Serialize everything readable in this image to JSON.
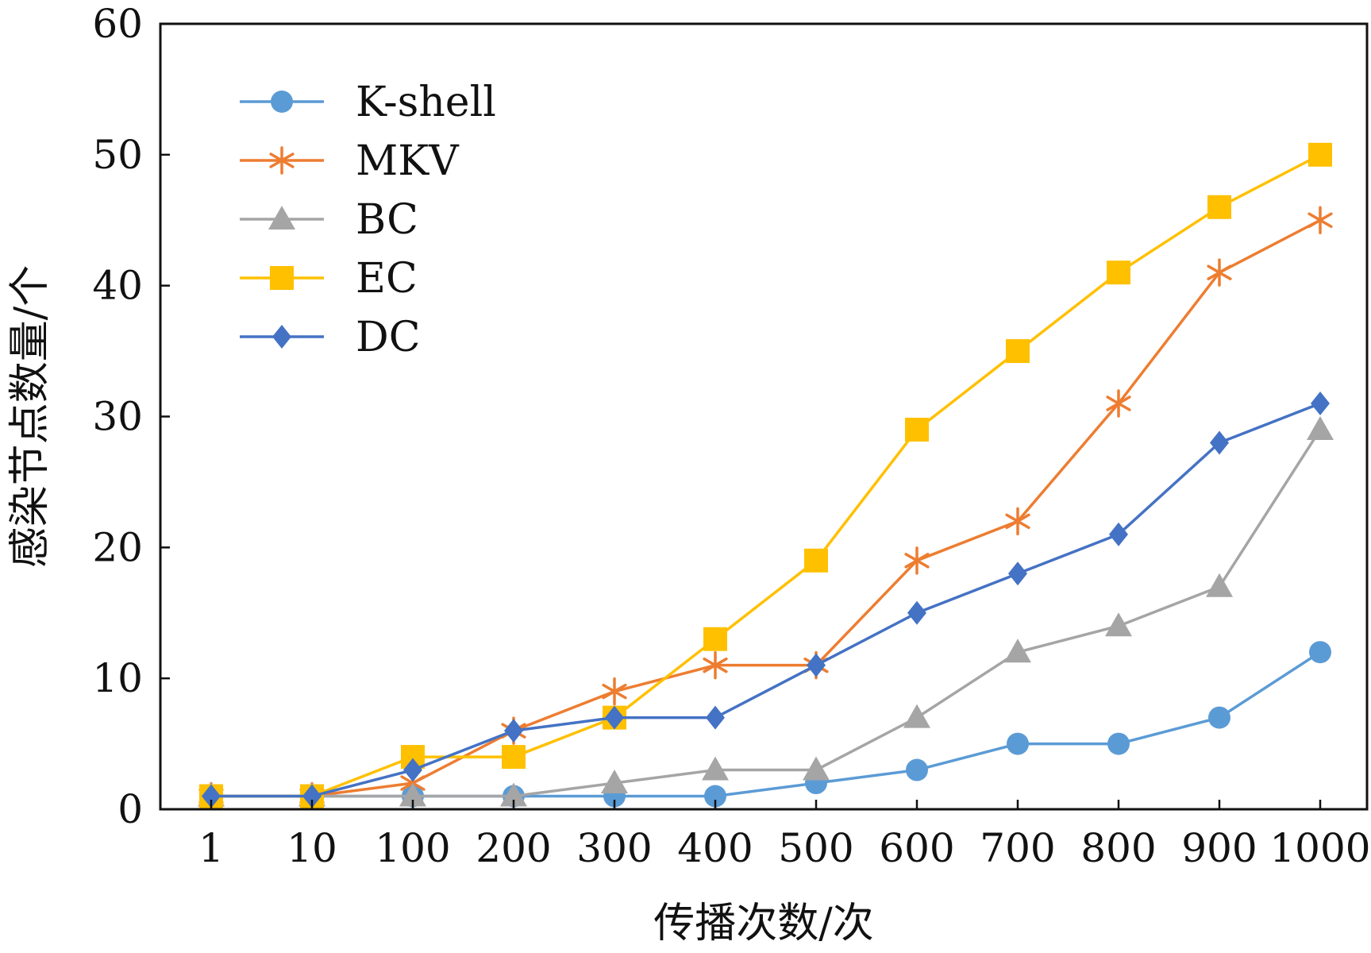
{
  "chart_data": {
    "type": "line",
    "xlabel": "传播次数/次",
    "ylabel": "感染节点数量/个",
    "categories": [
      "1",
      "10",
      "100",
      "200",
      "300",
      "400",
      "500",
      "600",
      "700",
      "800",
      "900",
      "1000"
    ],
    "yticks": [
      "0",
      "10",
      "20",
      "30",
      "40",
      "50",
      "60"
    ],
    "ylim": [
      0,
      60
    ],
    "grid": false,
    "legend_position": "top-left",
    "series": [
      {
        "name": "K-shell",
        "color": "#5b9bd5",
        "marker": "circle",
        "values": [
          1,
          1,
          1,
          1,
          1,
          1,
          2,
          3,
          5,
          5,
          7,
          12
        ]
      },
      {
        "name": "MKV",
        "color": "#ed7d31",
        "marker": "asterisk",
        "values": [
          1,
          1,
          2,
          6,
          9,
          11,
          11,
          19,
          22,
          31,
          41,
          45
        ]
      },
      {
        "name": "BC",
        "color": "#a5a5a5",
        "marker": "triangle",
        "values": [
          1,
          1,
          1,
          1,
          2,
          3,
          3,
          7,
          12,
          14,
          17,
          29
        ]
      },
      {
        "name": "EC",
        "color": "#ffc000",
        "marker": "square",
        "values": [
          1,
          1,
          4,
          4,
          7,
          13,
          19,
          29,
          35,
          41,
          46,
          50
        ]
      },
      {
        "name": "DC",
        "color": "#4472c4",
        "marker": "diamond",
        "values": [
          1,
          1,
          3,
          6,
          7,
          7,
          11,
          15,
          18,
          21,
          28,
          31
        ]
      }
    ]
  }
}
